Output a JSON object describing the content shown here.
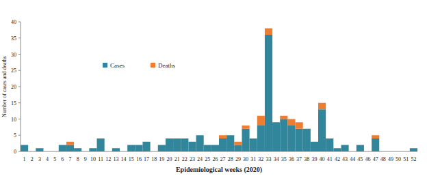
{
  "chart_data": {
    "type": "bar",
    "stacked": true,
    "x_label": "Epidemiological weeks (2020)",
    "y_label": "Number of cases and deaths",
    "categories": [
      "1",
      "2",
      "3",
      "4",
      "5",
      "6",
      "7",
      "8",
      "9",
      "10",
      "11",
      "12",
      "13",
      "14",
      "15",
      "16",
      "17",
      "18",
      "19",
      "20",
      "21",
      "22",
      "23",
      "24",
      "25",
      "26",
      "27",
      "28",
      "29",
      "30",
      "31",
      "32",
      "33",
      "34",
      "35",
      "36",
      "37",
      "38",
      "39",
      "40",
      "41",
      "42",
      "43",
      "44",
      "45",
      "46",
      "47",
      "48",
      "49",
      "50",
      "51",
      "52"
    ],
    "series": [
      {
        "name": "Cases",
        "color": "#31869b",
        "values": [
          2,
          0,
          1,
          0,
          0,
          2,
          2,
          1,
          0,
          1,
          4,
          0,
          1,
          0,
          2,
          2,
          3,
          0,
          2,
          4,
          4,
          4,
          3,
          5,
          2,
          2,
          4,
          5,
          2,
          7,
          4,
          8,
          36,
          9,
          10,
          8,
          7,
          7,
          3,
          13,
          4,
          1,
          2,
          0,
          2,
          0,
          4,
          0,
          0,
          0,
          0,
          1
        ]
      },
      {
        "name": "Deaths",
        "color": "#ed7d31",
        "values": [
          0,
          0,
          0,
          0,
          0,
          0,
          1,
          0,
          0,
          0,
          0,
          0,
          0,
          0,
          0,
          0,
          0,
          0,
          0,
          0,
          0,
          0,
          0,
          0,
          0,
          0,
          1,
          0,
          1,
          1,
          0,
          3,
          2,
          0,
          1,
          2,
          2,
          0,
          0,
          2,
          0,
          0,
          0,
          0,
          0,
          0,
          1,
          0,
          0,
          0,
          0,
          0
        ]
      }
    ],
    "ylim": [
      0,
      40
    ],
    "yticks": [
      0,
      5,
      10,
      15,
      20,
      25,
      30,
      35,
      40
    ],
    "grid": false,
    "legend": "upper-left"
  }
}
